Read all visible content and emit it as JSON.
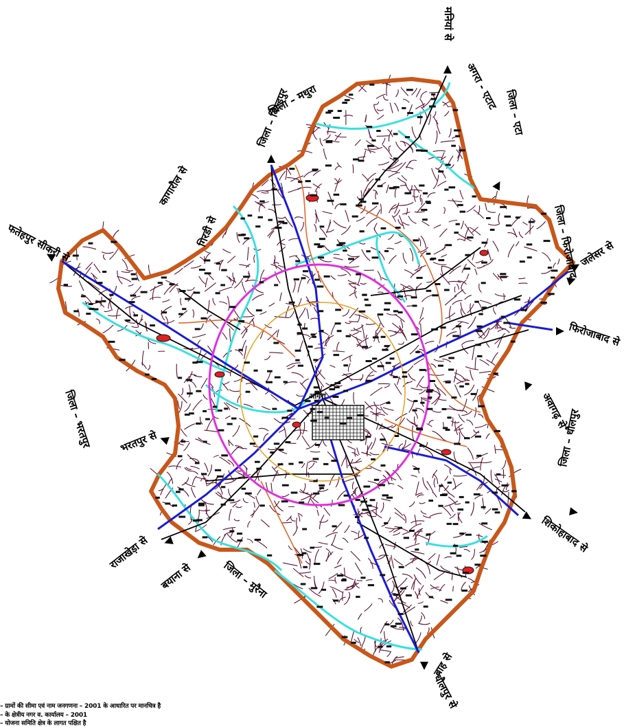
{
  "map": {
    "route_labels": [
      {
        "id": "fatehpur-sikri",
        "text": "फतेहपुर सीकरी से"
      },
      {
        "id": "dholpur",
        "text": "मनियां से"
      },
      {
        "id": "mathura-north",
        "text": "जिला – बिल्डपुर"
      },
      {
        "id": "mathura-west",
        "text": "गिरडी से"
      },
      {
        "id": "bharatpur",
        "text": "भरतपुर से"
      },
      {
        "id": "etah",
        "text": "अगरा - एटाट"
      },
      {
        "id": "east-upper",
        "text": "जलेसर से"
      },
      {
        "id": "east-mid",
        "text": "फिरोजाबाद से"
      },
      {
        "id": "east-lower",
        "text": "अवागढ़ से"
      },
      {
        "id": "shikohabad",
        "text": "शिकोहाबाद से"
      },
      {
        "id": "south-east",
        "text": "बाह से"
      },
      {
        "id": "south",
        "text": "धौलपुर से"
      },
      {
        "id": "south-west",
        "text": "राजाखेड़ा से"
      },
      {
        "id": "west-lower",
        "text": "बयाना से"
      },
      {
        "id": "west-mid",
        "text": "कागारौल से"
      }
    ],
    "district_labels": [
      {
        "id": "dist-west",
        "text": "जिला – भरतपुर"
      },
      {
        "id": "dist-north",
        "text": "जिला – मथुरा"
      },
      {
        "id": "dist-northeast",
        "text": "जिला – एटा"
      },
      {
        "id": "dist-east",
        "text": "जिला – फिरोजाबाद"
      },
      {
        "id": "dist-south",
        "text": "जिला – धौलपुर"
      },
      {
        "id": "dist-southwest",
        "text": "जिला – मुरैना"
      }
    ],
    "city_label": "आगरा",
    "colors": {
      "district_boundary": "#c8571a",
      "village_boundary": "#5a1230",
      "river": "#38e0e0",
      "national_highway": "#1a1ad6",
      "ring_road": "#e030e0",
      "inner_ring": "#e8a020",
      "subdivision": "#e06a2a",
      "town_fill": "#e02020",
      "road": "#000000"
    }
  },
  "footnotes": [
    "– ग्रामों की सीमा एवं नाम जनगणना – 2001 के आधारित पर मानचित्र है",
    "– के क्षेत्रीय नगर व. कार्यालय – 2001",
    "– योजना समिति क्षेत्र के लागत पक्षित है"
  ]
}
